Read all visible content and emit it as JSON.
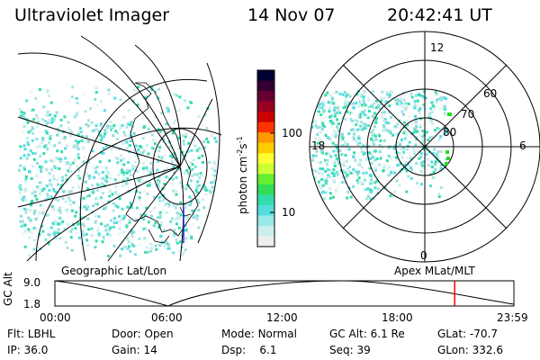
{
  "header": {
    "title": "Ultraviolet Imager",
    "date": "14 Nov 07",
    "time": "20:42:41 UT"
  },
  "colorbar": {
    "label": "photon cm",
    "label_sup1": "-2",
    "label_mid": "s",
    "label_sup2": "-1",
    "ticks": [
      "100",
      "10"
    ],
    "colors": [
      "#000033",
      "#330033",
      "#660033",
      "#990022",
      "#cc0000",
      "#ff3300",
      "#ff9900",
      "#ffcc00",
      "#ffff33",
      "#ccff33",
      "#66ee33",
      "#33dd55",
      "#33ddaa",
      "#55dddd",
      "#99e8e8",
      "#cceeee",
      "#eeeeee"
    ]
  },
  "polar_plot": {
    "mlt_labels": [
      "12",
      "18",
      "6",
      "0"
    ],
    "lat_labels": [
      "60",
      "70",
      "80"
    ],
    "label_left": "Apex  MLat/MLT"
  },
  "geo_plot": {
    "label": "Geographic Lat/Lon"
  },
  "timeline": {
    "y_axis_label": "GC Alt",
    "y_ticks": [
      "9.0",
      "1.8"
    ],
    "x_ticks": [
      "00:00",
      "06:00",
      "12:00",
      "18:00",
      "23:59"
    ],
    "current_marker_fraction": 0.871,
    "marker_color": "#ff0000"
  },
  "info": {
    "flt_label": "Flt:",
    "flt_value": "LBHL",
    "ip_label": "IP:",
    "ip_value": "36.0",
    "door_label": "Door:",
    "door_value": "Open",
    "gain_label": "Gain:",
    "gain_value": "14",
    "mode_label": "Mode:",
    "mode_value": "Normal",
    "dsp_label": "Dsp:",
    "dsp_value": "6.1",
    "gcalt_label": "GC Alt:",
    "gcalt_value": "6.1 Re",
    "seq_label": "Seq:",
    "seq_value": "39",
    "glat_label": "GLat:",
    "glat_value": "-70.7",
    "glon_label": "GLon:",
    "glon_value": "332.6"
  }
}
